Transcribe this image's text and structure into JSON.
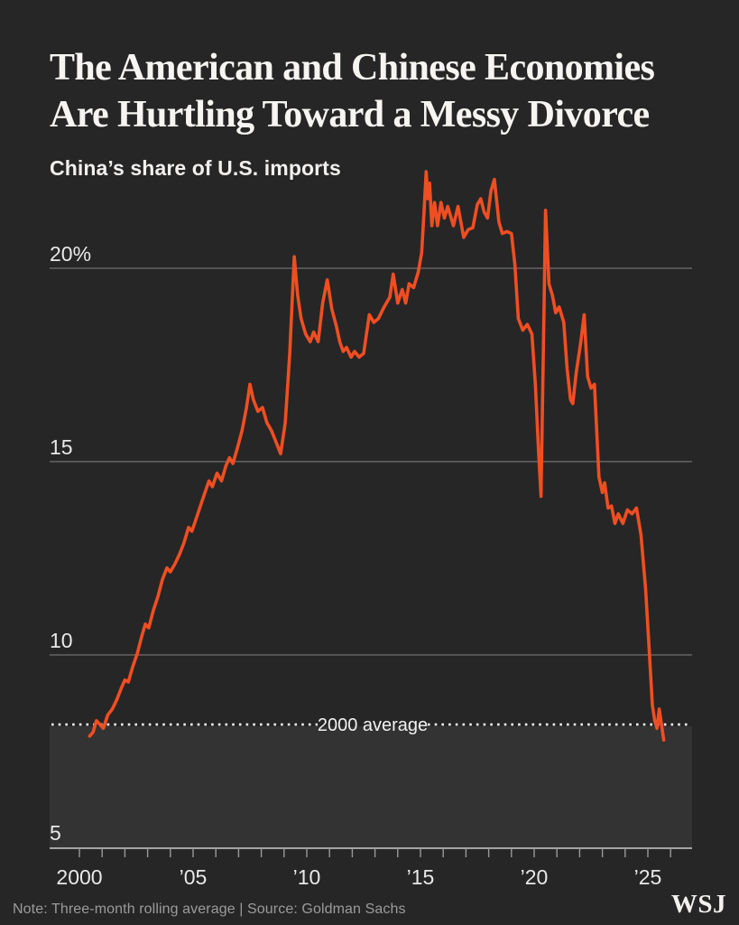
{
  "header": {
    "title_line1": "The American and Chinese Economies",
    "title_line2": "Are Hurtling Toward a Messy Divorce",
    "subtitle": "China’s share of U.S. imports"
  },
  "footer": {
    "note": "Note: Three-month rolling average | Source: Goldman Sachs",
    "logo": "WSJ"
  },
  "colors": {
    "background": "#262626",
    "line": "#f04e22",
    "gridline": "#828282",
    "baseline": "#cccccc",
    "tick": "#9a9a9a",
    "axis_text": "#e8e8e8",
    "reference_dots": "#f4f4f4",
    "reference_label": "#f2f2f2",
    "shade": "#333333",
    "note_text": "#9b9b9b",
    "title_text": "#f7f5f2"
  },
  "chart_data": {
    "type": "line",
    "title": "China’s share of U.S. imports",
    "xlabel": "",
    "ylabel": "",
    "unit": "%",
    "grid": true,
    "legend_position": "none",
    "y_axis": {
      "range": [
        5,
        23
      ],
      "ticks": [
        5,
        10,
        15,
        20
      ],
      "tick_labels": [
        "5",
        "10",
        "15",
        "20%"
      ]
    },
    "x_axis": {
      "range": [
        2000,
        2026
      ],
      "minor_tick_step_years": 1,
      "label_years": [
        2000,
        2005,
        2010,
        2015,
        2020,
        2025
      ],
      "labels": [
        "2000",
        "’05",
        "’10",
        "’15",
        "’20",
        "’25"
      ]
    },
    "reference_line": {
      "label": "2000 average",
      "value": 8.2,
      "style": "dotted",
      "shaded_below": true
    },
    "series": [
      {
        "name": "China share of U.S. imports, three-month rolling average",
        "points": [
          [
            2000.45,
            7.9
          ],
          [
            2000.6,
            8.0
          ],
          [
            2000.75,
            8.3
          ],
          [
            2000.9,
            8.2
          ],
          [
            2001.05,
            8.1
          ],
          [
            2001.25,
            8.45
          ],
          [
            2001.45,
            8.6
          ],
          [
            2001.65,
            8.85
          ],
          [
            2001.85,
            9.15
          ],
          [
            2002.0,
            9.35
          ],
          [
            2002.15,
            9.3
          ],
          [
            2002.35,
            9.7
          ],
          [
            2002.55,
            10.05
          ],
          [
            2002.75,
            10.5
          ],
          [
            2002.9,
            10.8
          ],
          [
            2003.05,
            10.7
          ],
          [
            2003.25,
            11.15
          ],
          [
            2003.45,
            11.5
          ],
          [
            2003.65,
            11.95
          ],
          [
            2003.85,
            12.25
          ],
          [
            2004.0,
            12.15
          ],
          [
            2004.2,
            12.35
          ],
          [
            2004.4,
            12.6
          ],
          [
            2004.6,
            12.9
          ],
          [
            2004.8,
            13.3
          ],
          [
            2004.95,
            13.2
          ],
          [
            2005.15,
            13.55
          ],
          [
            2005.35,
            13.9
          ],
          [
            2005.55,
            14.25
          ],
          [
            2005.7,
            14.5
          ],
          [
            2005.85,
            14.35
          ],
          [
            2006.05,
            14.7
          ],
          [
            2006.25,
            14.5
          ],
          [
            2006.45,
            14.9
          ],
          [
            2006.6,
            15.1
          ],
          [
            2006.75,
            14.95
          ],
          [
            2006.95,
            15.35
          ],
          [
            2007.15,
            15.8
          ],
          [
            2007.35,
            16.4
          ],
          [
            2007.5,
            17.0
          ],
          [
            2007.65,
            16.6
          ],
          [
            2007.85,
            16.3
          ],
          [
            2008.05,
            16.4
          ],
          [
            2008.25,
            16.0
          ],
          [
            2008.45,
            15.8
          ],
          [
            2008.65,
            15.5
          ],
          [
            2008.85,
            15.2
          ],
          [
            2009.05,
            16.0
          ],
          [
            2009.25,
            17.8
          ],
          [
            2009.45,
            20.3
          ],
          [
            2009.6,
            19.3
          ],
          [
            2009.75,
            18.7
          ],
          [
            2009.95,
            18.3
          ],
          [
            2010.15,
            18.1
          ],
          [
            2010.3,
            18.35
          ],
          [
            2010.5,
            18.1
          ],
          [
            2010.7,
            19.1
          ],
          [
            2010.9,
            19.7
          ],
          [
            2011.1,
            18.95
          ],
          [
            2011.3,
            18.5
          ],
          [
            2011.45,
            18.1
          ],
          [
            2011.6,
            17.85
          ],
          [
            2011.75,
            17.95
          ],
          [
            2011.95,
            17.7
          ],
          [
            2012.1,
            17.85
          ],
          [
            2012.3,
            17.7
          ],
          [
            2012.5,
            17.8
          ],
          [
            2012.75,
            18.8
          ],
          [
            2012.95,
            18.6
          ],
          [
            2013.15,
            18.7
          ],
          [
            2013.4,
            19.0
          ],
          [
            2013.65,
            19.25
          ],
          [
            2013.8,
            19.85
          ],
          [
            2014.0,
            19.1
          ],
          [
            2014.2,
            19.45
          ],
          [
            2014.35,
            19.1
          ],
          [
            2014.5,
            19.6
          ],
          [
            2014.7,
            19.5
          ],
          [
            2014.9,
            19.9
          ],
          [
            2015.05,
            20.4
          ],
          [
            2015.15,
            21.4
          ],
          [
            2015.25,
            22.5
          ],
          [
            2015.32,
            21.8
          ],
          [
            2015.4,
            22.2
          ],
          [
            2015.5,
            21.1
          ],
          [
            2015.62,
            21.7
          ],
          [
            2015.75,
            21.1
          ],
          [
            2015.9,
            21.7
          ],
          [
            2016.05,
            21.3
          ],
          [
            2016.2,
            21.6
          ],
          [
            2016.45,
            21.1
          ],
          [
            2016.65,
            21.6
          ],
          [
            2016.9,
            20.8
          ],
          [
            2017.1,
            21.0
          ],
          [
            2017.3,
            21.05
          ],
          [
            2017.5,
            21.65
          ],
          [
            2017.65,
            21.8
          ],
          [
            2017.8,
            21.45
          ],
          [
            2017.95,
            21.3
          ],
          [
            2018.1,
            22.0
          ],
          [
            2018.25,
            22.3
          ],
          [
            2018.45,
            21.2
          ],
          [
            2018.6,
            20.9
          ],
          [
            2018.8,
            20.95
          ],
          [
            2019.0,
            20.9
          ],
          [
            2019.15,
            20.1
          ],
          [
            2019.3,
            18.7
          ],
          [
            2019.5,
            18.4
          ],
          [
            2019.7,
            18.55
          ],
          [
            2019.9,
            18.3
          ],
          [
            2020.05,
            17.0
          ],
          [
            2020.2,
            15.2
          ],
          [
            2020.3,
            14.1
          ],
          [
            2020.42,
            18.5
          ],
          [
            2020.5,
            21.5
          ],
          [
            2020.65,
            19.6
          ],
          [
            2020.8,
            19.3
          ],
          [
            2020.95,
            18.85
          ],
          [
            2021.1,
            19.0
          ],
          [
            2021.3,
            18.6
          ],
          [
            2021.45,
            17.4
          ],
          [
            2021.6,
            16.6
          ],
          [
            2021.7,
            16.5
          ],
          [
            2021.85,
            17.3
          ],
          [
            2022.05,
            18.1
          ],
          [
            2022.2,
            18.8
          ],
          [
            2022.35,
            17.2
          ],
          [
            2022.5,
            16.9
          ],
          [
            2022.65,
            17.0
          ],
          [
            2022.85,
            14.6
          ],
          [
            2023.0,
            14.2
          ],
          [
            2023.1,
            14.45
          ],
          [
            2023.25,
            13.8
          ],
          [
            2023.4,
            13.85
          ],
          [
            2023.55,
            13.4
          ],
          [
            2023.7,
            13.65
          ],
          [
            2023.9,
            13.4
          ],
          [
            2024.1,
            13.75
          ],
          [
            2024.3,
            13.65
          ],
          [
            2024.5,
            13.8
          ],
          [
            2024.7,
            13.1
          ],
          [
            2024.9,
            11.7
          ],
          [
            2025.05,
            10.2
          ],
          [
            2025.2,
            8.7
          ],
          [
            2025.3,
            8.3
          ],
          [
            2025.4,
            8.1
          ],
          [
            2025.5,
            8.6
          ],
          [
            2025.6,
            8.2
          ],
          [
            2025.7,
            7.8
          ]
        ]
      }
    ]
  }
}
